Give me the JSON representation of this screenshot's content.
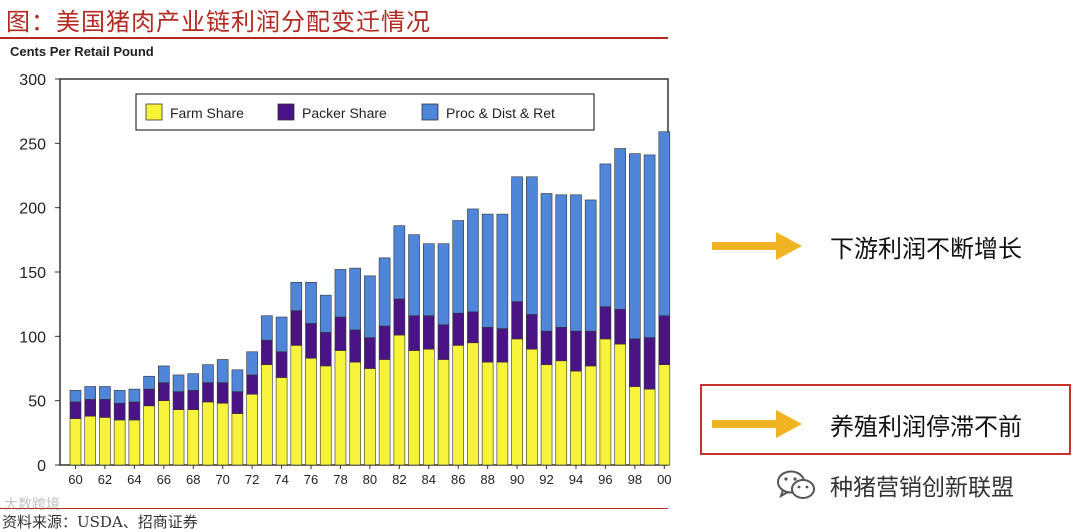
{
  "figure": {
    "title": "图：美国猪肉产业链利润分配变迁情况",
    "unit_label": "Cents Per Retail Pound",
    "source": "资料来源：USDA、招商证券"
  },
  "annotations": {
    "downstream": "下游利润不断增长",
    "farming": "养殖利润停滞不前",
    "arrow_color": "#f0b423",
    "box_color": "#c8322c"
  },
  "watermarks": {
    "left": "大数跨境",
    "right": "种猪营销创新联盟",
    "right_icon": "wechat-icon"
  },
  "colors": {
    "farm": "#f7f23a",
    "packer": "#4a1486",
    "proc": "#4f86d9",
    "plot_border": "#333333"
  },
  "chart_data": {
    "type": "bar",
    "stacked": true,
    "title": "",
    "xlabel": "",
    "ylabel": "Cents Per Retail Pound",
    "ylim": [
      0,
      300
    ],
    "yticks": [
      0,
      50,
      100,
      150,
      200,
      250,
      300
    ],
    "grid": false,
    "legend_position": "top-center",
    "tick_labels": [
      "60",
      "62",
      "64",
      "66",
      "68",
      "70",
      "72",
      "74",
      "76",
      "78",
      "80",
      "82",
      "84",
      "86",
      "88",
      "90",
      "92",
      "94",
      "96",
      "98",
      "00"
    ],
    "categories": [
      "1960",
      "1961",
      "1962",
      "1963",
      "1964",
      "1965",
      "1966",
      "1967",
      "1968",
      "1969",
      "1970",
      "1971",
      "1972",
      "1973",
      "1974",
      "1975",
      "1976",
      "1977",
      "1978",
      "1979",
      "1980",
      "1981",
      "1982",
      "1983",
      "1984",
      "1985",
      "1986",
      "1987",
      "1988",
      "1989",
      "1990",
      "1991",
      "1992",
      "1993",
      "1994",
      "1995",
      "1996",
      "1997",
      "1998",
      "1999",
      "2000"
    ],
    "series": [
      {
        "name": "Farm Share",
        "values": [
          36,
          38,
          37,
          35,
          35,
          46,
          50,
          43,
          43,
          49,
          48,
          40,
          55,
          78,
          68,
          93,
          83,
          77,
          89,
          80,
          75,
          82,
          101,
          89,
          90,
          82,
          93,
          95,
          80,
          80,
          98,
          90,
          78,
          81,
          73,
          77,
          98,
          94,
          61,
          59,
          78
        ]
      },
      {
        "name": "Packer Share",
        "values": [
          13,
          13,
          14,
          13,
          14,
          13,
          14,
          14,
          15,
          15,
          16,
          17,
          15,
          19,
          20,
          27,
          27,
          26,
          26,
          25,
          24,
          26,
          28,
          27,
          26,
          27,
          25,
          24,
          27,
          26,
          29,
          27,
          26,
          26,
          31,
          27,
          25,
          27,
          37,
          40,
          38
        ]
      },
      {
        "name": "Proc & Dist & Ret",
        "values": [
          9,
          10,
          10,
          10,
          10,
          10,
          13,
          13,
          13,
          14,
          18,
          17,
          18,
          19,
          27,
          22,
          32,
          29,
          37,
          48,
          48,
          53,
          57,
          63,
          56,
          63,
          72,
          80,
          88,
          89,
          97,
          107,
          107,
          103,
          106,
          102,
          111,
          125,
          144,
          142,
          143
        ]
      }
    ]
  }
}
